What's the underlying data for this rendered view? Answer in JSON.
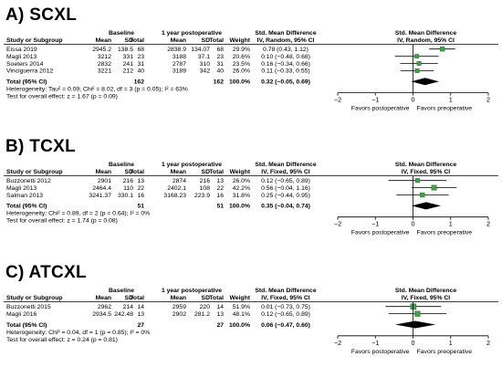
{
  "chart_data": [
    {
      "type": "forest",
      "panel_label": "A) SCXL",
      "group1": "Baseline",
      "group2": "1 year postoperative",
      "col_study": "Study or Subgroup",
      "col_mean": "Mean",
      "col_sd": "SD",
      "col_total": "Total",
      "col_weight": "Weight",
      "effect_title": "Std. Mean Difference",
      "effect_sub": "IV, Random, 95% CI",
      "plot_title": "Std. Mean Difference",
      "plot_sub": "IV, Random, 95% CI",
      "studies": [
        {
          "name": "Eissa 2019",
          "m1": "2945.2",
          "sd1": "138.5",
          "n1": "68",
          "m2": "2838.9",
          "sd2": "134.07",
          "n2": "68",
          "weight": "29.9%",
          "ci": "0.78 (0.43, 1.12)",
          "est": 0.78,
          "lo": 0.43,
          "hi": 1.12
        },
        {
          "name": "Magli 2013",
          "m1": "3212",
          "sd1": "331",
          "n1": "23",
          "m2": "3188",
          "sd2": "37.1",
          "n2": "23",
          "weight": "20.6%",
          "ci": "0.10 (−0.48, 0.68)",
          "est": 0.1,
          "lo": -0.48,
          "hi": 0.68
        },
        {
          "name": "Soeters 2014",
          "m1": "2832",
          "sd1": "241",
          "n1": "31",
          "m2": "2787",
          "sd2": "310",
          "n2": "31",
          "weight": "23.5%",
          "ci": "0.16 (−0.34, 0.66)",
          "est": 0.16,
          "lo": -0.34,
          "hi": 0.66
        },
        {
          "name": "Vinciguerra 2012",
          "m1": "3221",
          "sd1": "212",
          "n1": "40",
          "m2": "3189",
          "sd2": "342",
          "n2": "40",
          "weight": "26.0%",
          "ci": "0.11 (−0.33, 0.55)",
          "est": 0.11,
          "lo": -0.33,
          "hi": 0.55
        }
      ],
      "total": {
        "name": "Total (95% CI)",
        "n1": "162",
        "n2": "162",
        "weight": "100.0%",
        "ci": "0.32 (−0.05, 0.69)",
        "est": 0.32,
        "lo": -0.05,
        "hi": 0.69
      },
      "heterogeneity": "Heterogeneity: Tau² = 0.09; Chi² = 8.02, df = 3 (p = 0.05); I² = 63%",
      "overall": "Test for overall effect: z = 1.67 (p = 0.09)",
      "axis_ticks": [
        "−2",
        "−1",
        "0",
        "1",
        "2"
      ],
      "xlim": [
        -2,
        2
      ],
      "favours_left": "Favors postoperative",
      "favours_right": "Favors preoperative"
    },
    {
      "type": "forest",
      "panel_label": "B) TCXL",
      "group1": "Baseline",
      "group2": "1 year postoperative",
      "col_study": "Study or Subgroup",
      "col_mean": "Mean",
      "col_sd": "SD",
      "col_total": "Total",
      "col_weight": "Weight",
      "effect_title": "Std. Mean Difference",
      "effect_sub": "IV, Fixed, 95% CI",
      "plot_title": "Std. Mean Difference",
      "plot_sub": "IV, Fixed, 95% CI",
      "studies": [
        {
          "name": "Buzzonetti 2012",
          "m1": "2901",
          "sd1": "216",
          "n1": "13",
          "m2": "2874",
          "sd2": "216",
          "n2": "13",
          "weight": "26.0%",
          "ci": "0.12 (−0.65, 0.89)",
          "est": 0.12,
          "lo": -0.65,
          "hi": 0.89
        },
        {
          "name": "Magli 2013",
          "m1": "2464.4",
          "sd1": "110",
          "n1": "22",
          "m2": "2402.1",
          "sd2": "108",
          "n2": "22",
          "weight": "42.2%",
          "ci": "0.56 (−0.04, 1.16)",
          "est": 0.56,
          "lo": -0.04,
          "hi": 1.16
        },
        {
          "name": "Salman 2013",
          "m1": "3241.37",
          "sd1": "330.1",
          "n1": "16",
          "m2": "3168.23",
          "sd2": "223.9",
          "n2": "16",
          "weight": "31.8%",
          "ci": "0.25 (−0.44, 0.95)",
          "est": 0.25,
          "lo": -0.44,
          "hi": 0.95
        }
      ],
      "total": {
        "name": "Total (95% CI)",
        "n1": "51",
        "n2": "51",
        "weight": "100.0%",
        "ci": "0.35 (−0.04, 0.74)",
        "est": 0.35,
        "lo": -0.04,
        "hi": 0.74
      },
      "heterogeneity": "Heterogeneity: Chi² = 0.89, df = 2 (p = 0.64); I² = 0%",
      "overall": "Test for overall effect: z = 1.74 (p = 0.08)",
      "axis_ticks": [
        "−2",
        "−1",
        "0",
        "1",
        "2"
      ],
      "xlim": [
        -2,
        2
      ],
      "favours_left": "Favors postoperative",
      "favours_right": "Favors preoperative"
    },
    {
      "type": "forest",
      "panel_label": "C) ATCXL",
      "group1": "Baseline",
      "group2": "1 year postoperative",
      "col_study": "Study or Subgroup",
      "col_mean": "Mean",
      "col_sd": "SD",
      "col_total": "Total",
      "col_weight": "Weight",
      "effect_title": "Std. Mean Difference",
      "effect_sub": "IV, Fixed, 95% CI",
      "plot_title": "Std. Mean Difference",
      "plot_sub": "IV, Fixed, 95% CI",
      "studies": [
        {
          "name": "Buzzonetti 2015",
          "m1": "2962",
          "sd1": "214",
          "n1": "14",
          "m2": "2959",
          "sd2": "220",
          "n2": "14",
          "weight": "51.9%",
          "ci": "0.01 (−0.73, 0.75)",
          "est": 0.01,
          "lo": -0.73,
          "hi": 0.75
        },
        {
          "name": "Magli 2016",
          "m1": "2934.5",
          "sd1": "242.48",
          "n1": "13",
          "m2": "2902",
          "sd2": "281.2",
          "n2": "13",
          "weight": "48.1%",
          "ci": "0.12 (−0.65, 0.89)",
          "est": 0.12,
          "lo": -0.65,
          "hi": 0.89
        }
      ],
      "total": {
        "name": "Total (95% CI)",
        "n1": "27",
        "n2": "27",
        "weight": "100.0%",
        "ci": "0.06 (−0.47, 0.60)",
        "est": 0.06,
        "lo": -0.47,
        "hi": 0.6
      },
      "heterogeneity": "Heterogeneity: Chi² = 0.04, df = 1 (p = 0.85); I² = 0%",
      "overall": "Test for overall effect: z = 0.24 (p = 0.81)",
      "axis_ticks": [
        "−2",
        "−1",
        "0",
        "1",
        "2"
      ],
      "xlim": [
        -2,
        2
      ],
      "favours_left": "Favors postoperative",
      "favours_right": "Favors preoperative"
    }
  ]
}
